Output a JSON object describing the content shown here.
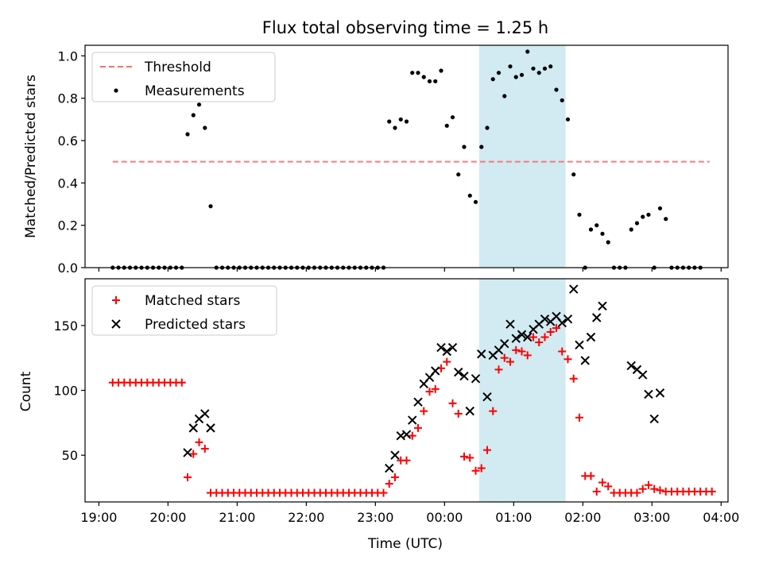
{
  "chart_data": [
    {
      "type": "scatter",
      "title": "Flux total observing time = 1.25 h",
      "ylabel": "Matched/Predicted stars",
      "xlim": [
        "19:00",
        "04:00"
      ],
      "ylim": [
        0,
        1.05
      ],
      "yticks": [
        "0.0",
        "0.2",
        "0.4",
        "0.6",
        "0.8",
        "1.0"
      ],
      "highlight_band": {
        "from": "00:30",
        "to": "01:45",
        "color": "#add8e6"
      },
      "legend": {
        "position": "top-left",
        "entries": [
          "Threshold",
          "Measurements"
        ]
      },
      "threshold": {
        "name": "Threshold",
        "value": 0.5,
        "from": "19:12",
        "to": "03:50",
        "color": "#ff6b6b"
      },
      "series": [
        {
          "name": "Measurements",
          "color": "#000000",
          "points": [
            [
              "19:12",
              0
            ],
            [
              "19:17",
              0
            ],
            [
              "19:22",
              0
            ],
            [
              "19:27",
              0
            ],
            [
              "19:32",
              0
            ],
            [
              "19:37",
              0
            ],
            [
              "19:42",
              0
            ],
            [
              "19:47",
              0
            ],
            [
              "19:52",
              0
            ],
            [
              "19:57",
              0
            ],
            [
              "20:02",
              0
            ],
            [
              "20:07",
              0
            ],
            [
              "20:12",
              0
            ],
            [
              "20:17",
              0.63
            ],
            [
              "20:22",
              0.72
            ],
            [
              "20:27",
              0.77
            ],
            [
              "20:32",
              0.66
            ],
            [
              "20:37",
              0.29
            ],
            [
              "20:42",
              0
            ],
            [
              "20:47",
              0
            ],
            [
              "20:52",
              0
            ],
            [
              "20:57",
              0
            ],
            [
              "21:02",
              0
            ],
            [
              "21:07",
              0
            ],
            [
              "21:12",
              0
            ],
            [
              "21:17",
              0
            ],
            [
              "21:22",
              0
            ],
            [
              "21:27",
              0
            ],
            [
              "21:32",
              0
            ],
            [
              "21:37",
              0
            ],
            [
              "21:42",
              0
            ],
            [
              "21:47",
              0
            ],
            [
              "21:52",
              0
            ],
            [
              "21:57",
              0
            ],
            [
              "22:02",
              0
            ],
            [
              "22:07",
              0
            ],
            [
              "22:12",
              0
            ],
            [
              "22:17",
              0
            ],
            [
              "22:22",
              0
            ],
            [
              "22:27",
              0
            ],
            [
              "22:32",
              0
            ],
            [
              "22:37",
              0
            ],
            [
              "22:42",
              0
            ],
            [
              "22:47",
              0
            ],
            [
              "22:52",
              0
            ],
            [
              "22:57",
              0
            ],
            [
              "23:02",
              0
            ],
            [
              "23:07",
              0
            ],
            [
              "23:12",
              0.69
            ],
            [
              "23:17",
              0.66
            ],
            [
              "23:22",
              0.7
            ],
            [
              "23:27",
              0.69
            ],
            [
              "23:32",
              0.92
            ],
            [
              "23:37",
              0.92
            ],
            [
              "23:42",
              0.9
            ],
            [
              "23:47",
              0.88
            ],
            [
              "23:52",
              0.88
            ],
            [
              "23:57",
              0.93
            ],
            [
              "00:02",
              0.67
            ],
            [
              "00:07",
              0.71
            ],
            [
              "00:12",
              0.44
            ],
            [
              "00:17",
              0.57
            ],
            [
              "00:22",
              0.34
            ],
            [
              "00:27",
              0.31
            ],
            [
              "00:32",
              0.57
            ],
            [
              "00:37",
              0.66
            ],
            [
              "00:42",
              0.89
            ],
            [
              "00:47",
              0.92
            ],
            [
              "00:52",
              0.81
            ],
            [
              "00:57",
              0.95
            ],
            [
              "01:02",
              0.9
            ],
            [
              "01:07",
              0.91
            ],
            [
              "01:12",
              1.02
            ],
            [
              "01:17",
              0.94
            ],
            [
              "01:22",
              0.92
            ],
            [
              "01:27",
              0.94
            ],
            [
              "01:32",
              0.95
            ],
            [
              "01:37",
              0.84
            ],
            [
              "01:42",
              0.79
            ],
            [
              "01:47",
              0.7
            ],
            [
              "01:52",
              0.44
            ],
            [
              "01:57",
              0.25
            ],
            [
              "02:02",
              0
            ],
            [
              "02:07",
              0.18
            ],
            [
              "02:12",
              0.2
            ],
            [
              "02:17",
              0.16
            ],
            [
              "02:22",
              0.12
            ],
            [
              "02:27",
              0
            ],
            [
              "02:32",
              0
            ],
            [
              "02:37",
              0
            ],
            [
              "02:42",
              0.18
            ],
            [
              "02:47",
              0.21
            ],
            [
              "02:52",
              0.24
            ],
            [
              "02:57",
              0.25
            ],
            [
              "03:02",
              0
            ],
            [
              "03:07",
              0.28
            ],
            [
              "03:12",
              0.23
            ],
            [
              "03:17",
              0
            ],
            [
              "03:22",
              0
            ],
            [
              "03:27",
              0
            ],
            [
              "03:32",
              0
            ],
            [
              "03:37",
              0
            ],
            [
              "03:42",
              0
            ]
          ]
        }
      ]
    },
    {
      "type": "scatter",
      "xlabel": "Time (UTC)",
      "ylabel": "Count",
      "xlim": [
        "19:00",
        "04:00"
      ],
      "ylim": [
        14,
        186
      ],
      "xticks": [
        "19:00",
        "20:00",
        "21:00",
        "22:00",
        "23:00",
        "00:00",
        "01:00",
        "02:00",
        "03:00",
        "04:00"
      ],
      "yticks": [
        "50",
        "100",
        "150"
      ],
      "highlight_band": {
        "from": "00:30",
        "to": "01:45",
        "color": "#add8e6"
      },
      "legend": {
        "position": "top-left",
        "entries": [
          "Matched stars",
          "Predicted stars"
        ]
      },
      "series": [
        {
          "name": "Matched stars",
          "marker": "+",
          "color": "#ff0000",
          "points": [
            [
              "19:12",
              106
            ],
            [
              "19:17",
              106
            ],
            [
              "19:22",
              106
            ],
            [
              "19:27",
              106
            ],
            [
              "19:32",
              106
            ],
            [
              "19:37",
              106
            ],
            [
              "19:42",
              106
            ],
            [
              "19:47",
              106
            ],
            [
              "19:52",
              106
            ],
            [
              "19:57",
              106
            ],
            [
              "20:02",
              106
            ],
            [
              "20:07",
              106
            ],
            [
              "20:12",
              106
            ],
            [
              "20:17",
              33
            ],
            [
              "20:22",
              51
            ],
            [
              "20:27",
              60
            ],
            [
              "20:32",
              55
            ],
            [
              "20:37",
              21
            ],
            [
              "20:42",
              21
            ],
            [
              "20:47",
              21
            ],
            [
              "20:52",
              21
            ],
            [
              "20:57",
              21
            ],
            [
              "21:02",
              21
            ],
            [
              "21:07",
              21
            ],
            [
              "21:12",
              21
            ],
            [
              "21:17",
              21
            ],
            [
              "21:22",
              21
            ],
            [
              "21:27",
              21
            ],
            [
              "21:32",
              21
            ],
            [
              "21:37",
              21
            ],
            [
              "21:42",
              21
            ],
            [
              "21:47",
              21
            ],
            [
              "21:52",
              21
            ],
            [
              "21:57",
              21
            ],
            [
              "22:02",
              21
            ],
            [
              "22:07",
              21
            ],
            [
              "22:12",
              21
            ],
            [
              "22:17",
              21
            ],
            [
              "22:22",
              21
            ],
            [
              "22:27",
              21
            ],
            [
              "22:32",
              21
            ],
            [
              "22:37",
              21
            ],
            [
              "22:42",
              21
            ],
            [
              "22:47",
              21
            ],
            [
              "22:52",
              21
            ],
            [
              "22:57",
              21
            ],
            [
              "23:02",
              21
            ],
            [
              "23:07",
              21
            ],
            [
              "23:12",
              28
            ],
            [
              "23:17",
              33
            ],
            [
              "23:22",
              46
            ],
            [
              "23:27",
              46
            ],
            [
              "23:32",
              65
            ],
            [
              "23:37",
              71
            ],
            [
              "23:42",
              84
            ],
            [
              "23:47",
              99
            ],
            [
              "23:52",
              101
            ],
            [
              "23:57",
              117
            ],
            [
              "00:02",
              122
            ],
            [
              "00:07",
              90
            ],
            [
              "00:12",
              82
            ],
            [
              "00:17",
              49
            ],
            [
              "00:22",
              48
            ],
            [
              "00:27",
              38
            ],
            [
              "00:32",
              40
            ],
            [
              "00:37",
              54
            ],
            [
              "00:42",
              84
            ],
            [
              "00:47",
              116
            ],
            [
              "00:52",
              125
            ],
            [
              "00:57",
              122
            ],
            [
              "01:02",
              131
            ],
            [
              "01:07",
              130
            ],
            [
              "01:12",
              127
            ],
            [
              "01:17",
              141
            ],
            [
              "01:22",
              137
            ],
            [
              "01:27",
              141
            ],
            [
              "01:32",
              145
            ],
            [
              "01:37",
              148
            ],
            [
              "01:42",
              130
            ],
            [
              "01:47",
              124
            ],
            [
              "01:52",
              109
            ],
            [
              "01:57",
              79
            ],
            [
              "02:02",
              34
            ],
            [
              "02:07",
              34
            ],
            [
              "02:12",
              22
            ],
            [
              "02:17",
              29
            ],
            [
              "02:22",
              26
            ],
            [
              "02:27",
              21
            ],
            [
              "02:32",
              21
            ],
            [
              "02:37",
              21
            ],
            [
              "02:42",
              21
            ],
            [
              "02:47",
              21
            ],
            [
              "02:52",
              24
            ],
            [
              "02:57",
              27
            ],
            [
              "03:02",
              24
            ],
            [
              "03:07",
              23
            ],
            [
              "03:12",
              22
            ],
            [
              "03:17",
              22
            ],
            [
              "03:22",
              22
            ],
            [
              "03:27",
              22
            ],
            [
              "03:32",
              22
            ],
            [
              "03:37",
              22
            ],
            [
              "03:42",
              22
            ],
            [
              "03:47",
              22
            ],
            [
              "03:52",
              22
            ]
          ]
        },
        {
          "name": "Predicted stars",
          "marker": "x",
          "color": "#000000",
          "points": [
            [
              "20:17",
              52
            ],
            [
              "20:22",
              71
            ],
            [
              "20:27",
              78
            ],
            [
              "20:32",
              82
            ],
            [
              "20:37",
              71
            ],
            [
              "23:12",
              40
            ],
            [
              "23:17",
              50
            ],
            [
              "23:22",
              65
            ],
            [
              "23:27",
              66
            ],
            [
              "23:32",
              77
            ],
            [
              "23:37",
              91
            ],
            [
              "23:42",
              105
            ],
            [
              "23:47",
              110
            ],
            [
              "23:52",
              115
            ],
            [
              "23:57",
              133
            ],
            [
              "00:02",
              130
            ],
            [
              "00:07",
              133
            ],
            [
              "00:12",
              114
            ],
            [
              "00:17",
              111
            ],
            [
              "00:22",
              84
            ],
            [
              "00:27",
              109
            ],
            [
              "00:32",
              128
            ],
            [
              "00:37",
              95
            ],
            [
              "00:42",
              127
            ],
            [
              "00:47",
              131
            ],
            [
              "00:52",
              136
            ],
            [
              "00:57",
              151
            ],
            [
              "01:02",
              140
            ],
            [
              "01:07",
              143
            ],
            [
              "01:12",
              141
            ],
            [
              "01:17",
              147
            ],
            [
              "01:22",
              151
            ],
            [
              "01:27",
              155
            ],
            [
              "01:32",
              153
            ],
            [
              "01:37",
              157
            ],
            [
              "01:42",
              152
            ],
            [
              "01:47",
              155
            ],
            [
              "01:52",
              178
            ],
            [
              "01:57",
              135
            ],
            [
              "02:02",
              123
            ],
            [
              "02:07",
              141
            ],
            [
              "02:12",
              156
            ],
            [
              "02:17",
              165
            ],
            [
              "02:42",
              119
            ],
            [
              "02:47",
              116
            ],
            [
              "02:52",
              112
            ],
            [
              "02:57",
              97
            ],
            [
              "03:02",
              78
            ],
            [
              "03:07",
              98
            ]
          ]
        }
      ]
    }
  ]
}
